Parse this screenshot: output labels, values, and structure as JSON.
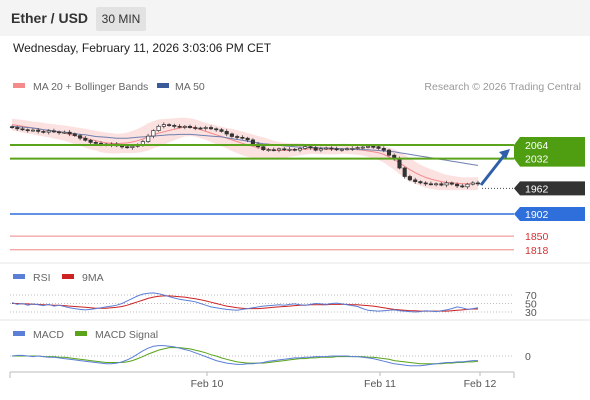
{
  "header": {
    "title": "Ether / USD",
    "timeframe": "30 MIN"
  },
  "timestamp": "Wednesday, February 11, 2026 3:03:06 PM CET",
  "legend": [
    {
      "name": "MA 20 + Bollinger Bands",
      "color": "#f48a8a"
    },
    {
      "name": "MA 50",
      "color": "#3b5a9a"
    }
  ],
  "copyright": "Research © 2026 Trading Central",
  "chart_data": [
    {
      "type": "candlestick",
      "title": "Ether / USD",
      "x_ticks": [
        "Feb 10",
        "Feb 11",
        "Feb 12"
      ],
      "ylim": [
        1810,
        2130
      ],
      "price_close": [
        2105,
        2102,
        2100,
        2098,
        2099,
        2096,
        2094,
        2097,
        2095,
        2093,
        2094,
        2090,
        2086,
        2080,
        2075,
        2070,
        2068,
        2066,
        2064,
        2066,
        2062,
        2060,
        2058,
        2061,
        2065,
        2072,
        2085,
        2098,
        2108,
        2112,
        2110,
        2108,
        2106,
        2108,
        2105,
        2104,
        2103,
        2105,
        2102,
        2100,
        2096,
        2090,
        2084,
        2082,
        2080,
        2076,
        2066,
        2060,
        2053,
        2053,
        2052,
        2055,
        2053,
        2054,
        2052,
        2056,
        2060,
        2058,
        2052,
        2055,
        2057,
        2055,
        2053,
        2054,
        2055,
        2056,
        2058,
        2059,
        2061,
        2060,
        2056,
        2052,
        2040,
        2032,
        2010,
        1990,
        1982,
        1978,
        1975,
        1973,
        1972,
        1973,
        1970,
        1975,
        1972,
        1968,
        1966,
        1972,
        1975,
        1973
      ],
      "ma20": [
        2112,
        2110,
        2108,
        2106,
        2104,
        2102,
        2100,
        2098,
        2096,
        2094,
        2092,
        2089,
        2086,
        2083,
        2080,
        2077,
        2074,
        2071,
        2069,
        2068,
        2067,
        2068,
        2069,
        2071,
        2074,
        2078,
        2083,
        2088,
        2092,
        2095,
        2098,
        2101,
        2104,
        2106,
        2106,
        2104,
        2100,
        2096,
        2092,
        2088,
        2084,
        2080,
        2076,
        2072,
        2068,
        2064,
        2061,
        2058,
        2056,
        2054,
        2052,
        2051,
        2051,
        2052,
        2053,
        2054,
        2054,
        2055,
        2055,
        2054,
        2054,
        2054,
        2054,
        2055,
        2055,
        2054,
        2053,
        2052,
        2050,
        2048,
        2046,
        2042,
        2036,
        2030,
        2022,
        2014,
        2006,
        1999,
        1993,
        1988,
        1984,
        1981,
        1978,
        1976,
        1975,
        1974,
        1973,
        1973,
        1973,
        1974
      ],
      "ma50": [
        2108,
        2107,
        2106,
        2105,
        2104,
        2102,
        2100,
        2099,
        2097,
        2095,
        2094,
        2092,
        2091,
        2089,
        2088,
        2086,
        2084,
        2083,
        2082,
        2081,
        2080,
        2080,
        2080,
        2081,
        2082,
        2083,
        2084,
        2085,
        2086,
        2087,
        2088,
        2088,
        2089,
        2089,
        2089,
        2088,
        2087,
        2086,
        2085,
        2084,
        2083,
        2081,
        2079,
        2077,
        2075,
        2073,
        2071,
        2069,
        2067,
        2066,
        2064,
        2063,
        2062,
        2061,
        2060,
        2059,
        2059,
        2058,
        2058,
        2057,
        2057,
        2056,
        2056,
        2055,
        2055,
        2054,
        2054,
        2053,
        2053,
        2052,
        2051,
        2050,
        2049,
        2048,
        2046,
        2044,
        2042,
        2040,
        2038,
        2036,
        2034,
        2032,
        2030,
        2028,
        2026,
        2024,
        2022,
        2020,
        2018,
        2016
      ],
      "bb_width": [
        14,
        14,
        15,
        15,
        15,
        16,
        16,
        16,
        17,
        17,
        18,
        19,
        20,
        21,
        22,
        23,
        23,
        24,
        24,
        24,
        23,
        23,
        24,
        26,
        28,
        30,
        32,
        32,
        32,
        30,
        28,
        26,
        24,
        22,
        21,
        20,
        20,
        20,
        21,
        22,
        23,
        24,
        26,
        27,
        28,
        28,
        28,
        27,
        26,
        24,
        22,
        20,
        18,
        16,
        15,
        14,
        13,
        12,
        12,
        12,
        12,
        12,
        12,
        12,
        12,
        12,
        12,
        13,
        14,
        15,
        17,
        19,
        22,
        24,
        26,
        27,
        27,
        26,
        25,
        24,
        23,
        22,
        20,
        18,
        17,
        16,
        15,
        15,
        15,
        15
      ],
      "levels": [
        {
          "value": 2064,
          "label": "2064",
          "color": "#5aa31a",
          "badge": "green"
        },
        {
          "value": 2032,
          "label": "2032",
          "color": "#5aa31a",
          "badge": "green"
        },
        {
          "value": 1962,
          "label": "1962",
          "color": "#333333",
          "badge": "dark"
        },
        {
          "value": 1902,
          "label": "1902",
          "color": "#2f6fdc",
          "badge": "blue"
        },
        {
          "value": 1850,
          "label": "1850",
          "color": "#d23333",
          "badge": "text"
        },
        {
          "value": 1818,
          "label": "1818",
          "color": "#d23333",
          "badge": "text"
        }
      ],
      "arrow": {
        "from_value": 1970,
        "to_value": 2064,
        "color": "#2f5fa8"
      }
    },
    {
      "type": "line",
      "legend": [
        {
          "name": "RSI",
          "color": "#5b7fd6"
        },
        {
          "name": "9MA",
          "color": "#cc2222"
        }
      ],
      "levels": [
        "70",
        "50",
        "30"
      ],
      "ylim": [
        20,
        80
      ],
      "rsi": [
        52,
        48,
        50,
        46,
        49,
        47,
        45,
        48,
        44,
        46,
        43,
        40,
        38,
        36,
        35,
        36,
        38,
        40,
        42,
        44,
        46,
        50,
        56,
        62,
        68,
        72,
        74,
        75,
        73,
        70,
        66,
        63,
        60,
        58,
        56,
        54,
        50,
        46,
        42,
        40,
        38,
        36,
        35,
        34,
        36,
        38,
        40,
        42,
        44,
        45,
        46,
        47,
        46,
        48,
        49,
        47,
        46,
        48,
        50,
        49,
        48,
        50,
        51,
        49,
        47,
        45,
        43,
        38,
        34,
        33,
        32,
        33,
        34,
        35,
        33,
        32,
        31,
        30,
        31,
        33,
        32,
        31,
        33,
        35,
        38,
        42,
        40,
        36,
        38,
        40
      ],
      "ma9": [
        50,
        50,
        49,
        49,
        48,
        48,
        47,
        47,
        46,
        46,
        45,
        44,
        43,
        42,
        41,
        40,
        39,
        39,
        39,
        40,
        41,
        43,
        46,
        50,
        54,
        58,
        62,
        65,
        67,
        68,
        68,
        67,
        66,
        65,
        63,
        61,
        59,
        56,
        53,
        50,
        47,
        44,
        42,
        40,
        39,
        38,
        38,
        38,
        39,
        40,
        41,
        42,
        43,
        44,
        45,
        46,
        46,
        47,
        47,
        47,
        47,
        48,
        48,
        48,
        48,
        47,
        47,
        46,
        45,
        44,
        42,
        40,
        38,
        36,
        35,
        34,
        33,
        33,
        32,
        32,
        32,
        32,
        32,
        32,
        33,
        34,
        35,
        36,
        37,
        37
      ]
    },
    {
      "type": "line",
      "legend": [
        {
          "name": "MACD",
          "color": "#5b7fd6"
        },
        {
          "name": "MACD Signal",
          "color": "#5aa31a"
        }
      ],
      "levels": [
        "0"
      ],
      "ylim": [
        -30,
        30
      ],
      "macd": [
        0,
        1,
        1,
        0,
        -1,
        0,
        -1,
        -2,
        -2,
        -3,
        -4,
        -5,
        -6,
        -7,
        -8,
        -9,
        -10,
        -11,
        -12,
        -12,
        -11,
        -9,
        -6,
        -2,
        3,
        8,
        12,
        15,
        16,
        16,
        15,
        14,
        12,
        10,
        8,
        5,
        2,
        -1,
        -4,
        -7,
        -9,
        -11,
        -12,
        -13,
        -13,
        -12,
        -12,
        -11,
        -10,
        -8,
        -7,
        -6,
        -5,
        -4,
        -3,
        -3,
        -2,
        -2,
        -1,
        -1,
        -1,
        0,
        0,
        0,
        0,
        -1,
        -1,
        -2,
        -3,
        -4,
        -6,
        -8,
        -10,
        -12,
        -13,
        -14,
        -15,
        -15,
        -15,
        -14,
        -13,
        -12,
        -11,
        -10,
        -10,
        -9,
        -9,
        -8,
        -7,
        -7
      ],
      "signal": [
        0,
        0,
        0,
        0,
        0,
        0,
        -1,
        -1,
        -1,
        -2,
        -2,
        -3,
        -4,
        -5,
        -6,
        -7,
        -8,
        -9,
        -10,
        -10,
        -10,
        -10,
        -9,
        -7,
        -4,
        -1,
        3,
        6,
        9,
        11,
        13,
        13,
        13,
        12,
        11,
        9,
        7,
        5,
        2,
        0,
        -3,
        -5,
        -7,
        -9,
        -10,
        -11,
        -11,
        -11,
        -11,
        -10,
        -9,
        -8,
        -7,
        -6,
        -5,
        -4,
        -4,
        -3,
        -3,
        -2,
        -2,
        -2,
        -1,
        -1,
        -1,
        -1,
        -1,
        -1,
        -2,
        -2,
        -3,
        -4,
        -5,
        -7,
        -8,
        -9,
        -10,
        -11,
        -12,
        -12,
        -12,
        -12,
        -12,
        -11,
        -11,
        -10,
        -10,
        -9,
        -9,
        -8
      ]
    }
  ]
}
